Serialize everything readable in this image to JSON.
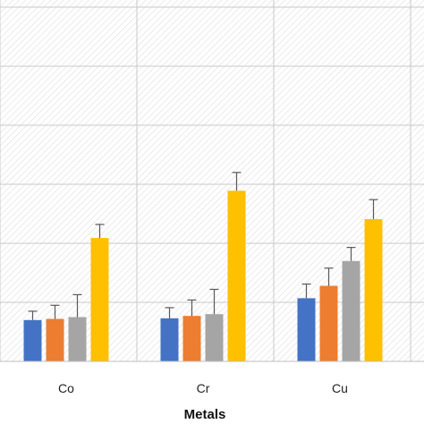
{
  "chart_data": {
    "type": "bar",
    "xlabel": "Metals",
    "ylabel": "",
    "categories": [
      "Co",
      "Cr",
      "Cu"
    ],
    "ylim": [
      0,
      6
    ],
    "grid": true,
    "series": [
      {
        "color": "#4472C4",
        "values": [
          0.7,
          0.73,
          1.07
        ],
        "errors": [
          0.15,
          0.18,
          0.24
        ]
      },
      {
        "color": "#ED7D31",
        "values": [
          0.72,
          0.77,
          1.28
        ],
        "errors": [
          0.23,
          0.27,
          0.3
        ]
      },
      {
        "color": "#A5A5A5",
        "values": [
          0.75,
          0.8,
          1.7
        ],
        "errors": [
          0.38,
          0.42,
          0.23
        ]
      },
      {
        "color": "#FFC000",
        "values": [
          2.09,
          2.89,
          2.41
        ],
        "errors": [
          0.23,
          0.31,
          0.33
        ]
      }
    ]
  }
}
